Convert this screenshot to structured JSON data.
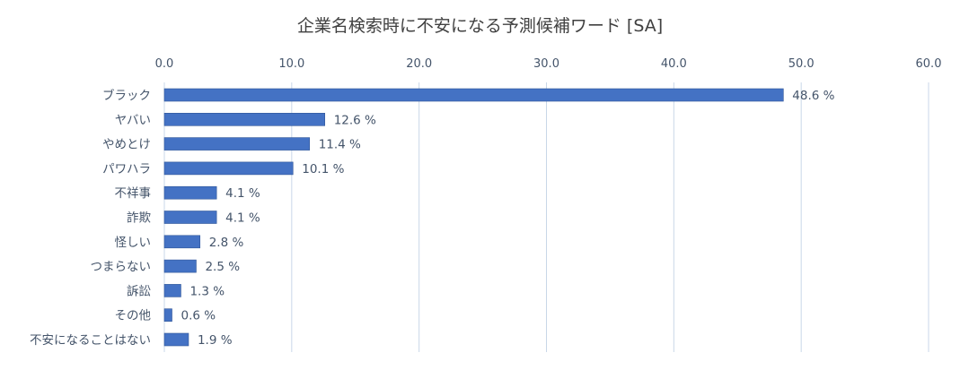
{
  "chart_data": {
    "type": "bar",
    "orientation": "horizontal",
    "title": "企業名検索時に不安になる予測候補ワード [SA]",
    "categories": [
      "ブラック",
      "ヤバい",
      "やめとけ",
      "パワハラ",
      "不祥事",
      "詐欺",
      "怪しい",
      "つまらない",
      "訴訟",
      "その他",
      "不安になることはない"
    ],
    "values": [
      48.6,
      12.6,
      11.4,
      10.1,
      4.1,
      4.1,
      2.8,
      2.5,
      1.3,
      0.6,
      1.9
    ],
    "data_labels": [
      "48.6 %",
      "12.6 %",
      "11.4 %",
      "10.1 %",
      "4.1 %",
      "4.1 %",
      "2.8 %",
      "2.5 %",
      "1.3 %",
      "0.6 %",
      "1.9 %"
    ],
    "xlim": [
      0,
      60
    ],
    "x_ticks": [
      0,
      10,
      20,
      30,
      40,
      50,
      60
    ],
    "x_tick_labels": [
      "0.0",
      "10.0",
      "20.0",
      "30.0",
      "40.0",
      "50.0",
      "60.0"
    ],
    "x_axis_position": "top",
    "grid": true,
    "xlabel": "",
    "ylabel": "",
    "colors": {
      "bar": "#4472C4",
      "bar_edge": "#2F5597",
      "grid": "#C9D7E8",
      "text": "#44546A",
      "title": "#404040"
    }
  }
}
